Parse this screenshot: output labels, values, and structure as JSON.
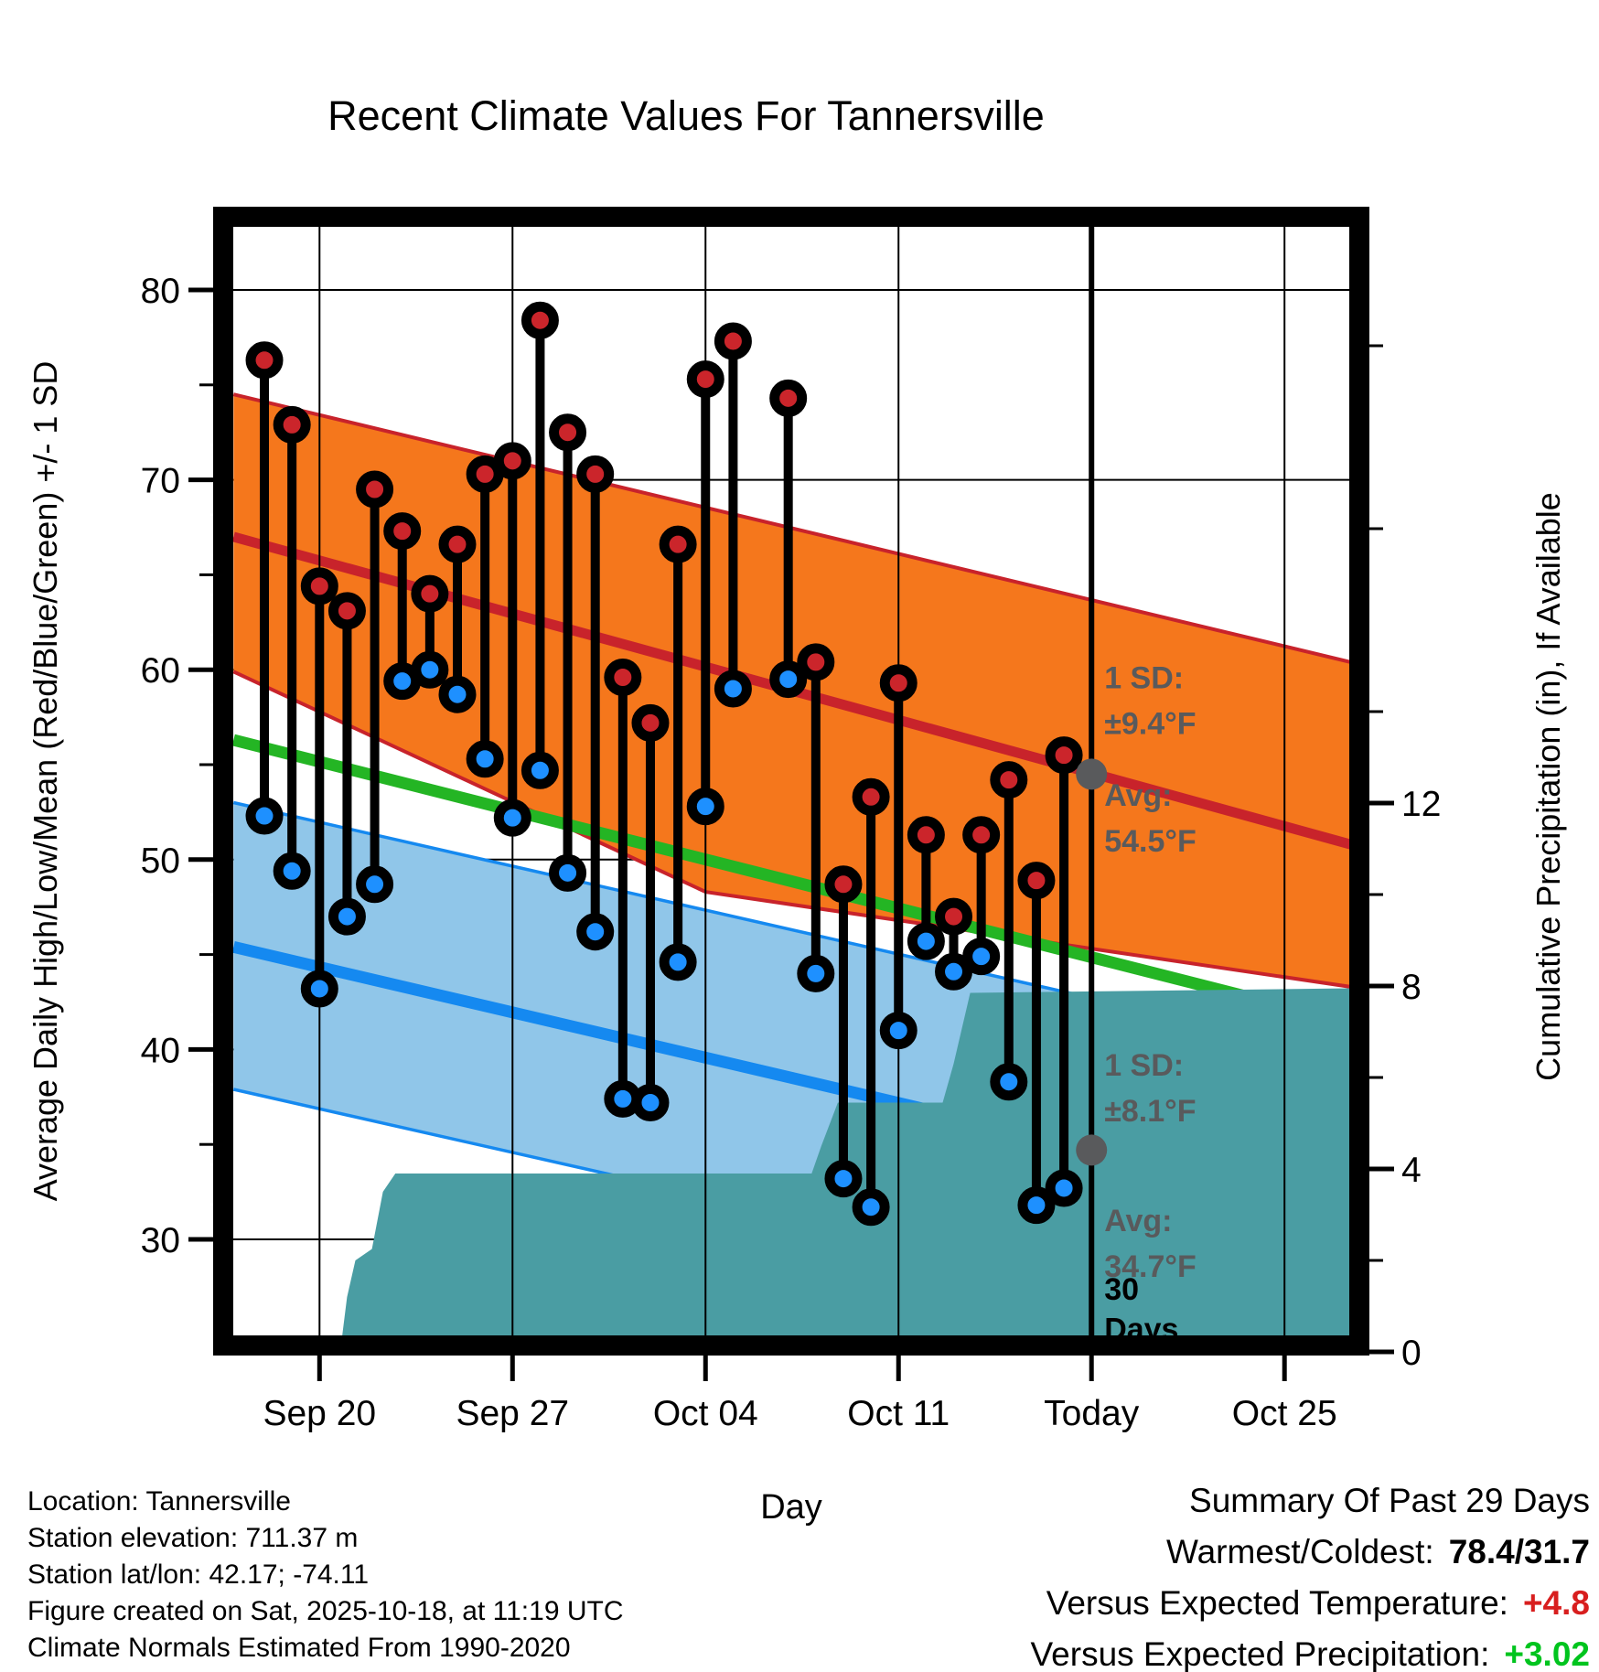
{
  "title": "Recent Climate Values For Tannersville",
  "axes": {
    "y_left_label": "Average Daily High/Low/Mean (Red/Blue/Green) +/- 1 SD",
    "y_right_label": "Cumulative Precipitation (in), If Available",
    "x_label": "Day",
    "y_left_ticks": [
      30,
      40,
      50,
      60,
      70,
      80
    ],
    "y_left_minor_ticks": [
      35,
      45,
      55,
      65,
      75
    ],
    "y_right_ticks": [
      0,
      4,
      8,
      12
    ],
    "y_right_minor_ticks": [
      2,
      6,
      10,
      14,
      18,
      22
    ],
    "x_ticks": [
      {
        "label": "Sep 20",
        "day": 0
      },
      {
        "label": "Sep 27",
        "day": 7
      },
      {
        "label": "Oct 04",
        "day": 14
      },
      {
        "label": "Oct 11",
        "day": 21
      },
      {
        "label": "Today",
        "day": 28
      },
      {
        "label": "Oct 25",
        "day": 35
      }
    ]
  },
  "chart_data": {
    "type": "line",
    "subtype": "daily-high-low-stems-with-normal-bands-and-cumulative-precip",
    "title": "Recent Climate Values For Tannersville",
    "xlabel": "Day",
    "ylabel_left": "Average Daily High/Low/Mean (Red/Blue/Green) +/- 1 SD",
    "ylabel_right": "Cumulative Precipitation (in), If Available",
    "ylim_left_F": [
      25.0,
      83.4
    ],
    "ylim_right_in": [
      0,
      24.6
    ],
    "x_range_days": [
      -3.12,
      37.4
    ],
    "grid": true,
    "days": [
      {
        "date": "Sep 18",
        "day": -2,
        "high": 76.3,
        "low": 52.3
      },
      {
        "date": "Sep 19",
        "day": -1,
        "high": 72.9,
        "low": 49.4
      },
      {
        "date": "Sep 20",
        "day": 0,
        "high": 64.4,
        "low": 43.2
      },
      {
        "date": "Sep 21",
        "day": 1,
        "high": 63.1,
        "low": 47.0
      },
      {
        "date": "Sep 22",
        "day": 2,
        "high": 69.5,
        "low": 48.7
      },
      {
        "date": "Sep 23",
        "day": 3,
        "high": 67.3,
        "low": 59.4
      },
      {
        "date": "Sep 24",
        "day": 4,
        "high": 64.0,
        "low": 60.0
      },
      {
        "date": "Sep 25",
        "day": 5,
        "high": 66.6,
        "low": 58.7
      },
      {
        "date": "Sep 26",
        "day": 6,
        "high": 70.3,
        "low": 55.3
      },
      {
        "date": "Sep 27",
        "day": 7,
        "high": 71.0,
        "low": 52.2
      },
      {
        "date": "Sep 28",
        "day": 8,
        "high": 78.4,
        "low": 54.7
      },
      {
        "date": "Sep 29",
        "day": 9,
        "high": 72.5,
        "low": 49.3
      },
      {
        "date": "Sep 30",
        "day": 10,
        "high": 70.3,
        "low": 46.2
      },
      {
        "date": "Oct 01",
        "day": 11,
        "high": 59.6,
        "low": 37.4
      },
      {
        "date": "Oct 02",
        "day": 12,
        "high": 57.2,
        "low": 37.2
      },
      {
        "date": "Oct 03",
        "day": 13,
        "high": 66.6,
        "low": 44.6
      },
      {
        "date": "Oct 04",
        "day": 14,
        "high": 75.3,
        "low": 52.8
      },
      {
        "date": "Oct 05",
        "day": 15,
        "high": 77.3,
        "low": 59.0
      },
      {
        "date": "Oct 07",
        "day": 17,
        "high": 74.3,
        "low": 59.5
      },
      {
        "date": "Oct 08",
        "day": 18,
        "high": 60.4,
        "low": 44.0
      },
      {
        "date": "Oct 09",
        "day": 19,
        "high": 48.7,
        "low": 33.2
      },
      {
        "date": "Oct 10",
        "day": 20,
        "high": 53.3,
        "low": 31.7
      },
      {
        "date": "Oct 11",
        "day": 21,
        "high": 59.3,
        "low": 41.0
      },
      {
        "date": "Oct 12",
        "day": 22,
        "high": 51.3,
        "low": 45.7
      },
      {
        "date": "Oct 13",
        "day": 23,
        "high": 47.0,
        "low": 44.1
      },
      {
        "date": "Oct 14",
        "day": 24,
        "high": 51.3,
        "low": 44.9
      },
      {
        "date": "Oct 15",
        "day": 25,
        "high": 54.2,
        "low": 38.3
      },
      {
        "date": "Oct 16",
        "day": 26,
        "high": 48.9,
        "low": 31.8
      },
      {
        "date": "Oct 17",
        "day": 27,
        "high": 55.5,
        "low": 32.7
      }
    ],
    "normals": {
      "high_upper": [
        [
          -3.12,
          74.5
        ],
        [
          37.4,
          60.4
        ]
      ],
      "high_mean": [
        [
          -3.12,
          67.0
        ],
        [
          37.4,
          50.8
        ]
      ],
      "high_lower": [
        [
          -3.12,
          59.9
        ],
        [
          14,
          48.3
        ],
        [
          37.4,
          43.3
        ]
      ],
      "mean": [
        [
          -3.12,
          56.3
        ],
        [
          37.4,
          41.4
        ]
      ],
      "low_upper": [
        [
          -3.12,
          53.0
        ],
        [
          37.4,
          39.6
        ]
      ],
      "low_mean": [
        [
          -3.12,
          45.4
        ],
        [
          37.4,
          31.6
        ]
      ],
      "low_lower": [
        [
          -3.12,
          37.9
        ],
        [
          37.4,
          24.6
        ]
      ]
    },
    "precip_steps": [
      [
        -3.12,
        0
      ],
      [
        0.75,
        0
      ],
      [
        1.0,
        1.2
      ],
      [
        1.3,
        2.0
      ],
      [
        1.9,
        2.25
      ],
      [
        2.3,
        3.5
      ],
      [
        2.75,
        3.9
      ],
      [
        17.85,
        3.9
      ],
      [
        18.2,
        4.5
      ],
      [
        18.8,
        5.45
      ],
      [
        22.6,
        5.45
      ],
      [
        23.0,
        6.3
      ],
      [
        23.6,
        7.85
      ],
      [
        37.4,
        7.95
      ]
    ],
    "today": {
      "label": "Today",
      "day": 28,
      "avg_high_F": 54.5,
      "sd_high_F": 9.4,
      "avg_low_F": 34.7,
      "sd_low_F": 8.1,
      "window_label": "30 Days"
    },
    "markers": [
      {
        "day": 28,
        "T": 54.5
      },
      {
        "day": 28,
        "T": 34.7
      }
    ]
  },
  "annotations": [
    {
      "id": "high-sd",
      "style": "gray",
      "anchor_day": 28,
      "lines": [
        [
          "1 SD:",
          59.6
        ],
        [
          "±9.4°F",
          57.2
        ]
      ]
    },
    {
      "id": "high-avg",
      "style": "gray",
      "anchor_day": 28,
      "lines": [
        [
          "Avg:",
          53.4
        ],
        [
          "54.5°F",
          51.0
        ]
      ]
    },
    {
      "id": "low-sd",
      "style": "gray",
      "anchor_day": 28,
      "lines": [
        [
          "1 SD:",
          39.2
        ],
        [
          "±8.1°F",
          36.8
        ]
      ]
    },
    {
      "id": "low-avg",
      "style": "gray",
      "anchor_day": 28,
      "lines": [
        [
          "Avg:",
          31.0
        ],
        [
          "34.7°F",
          28.6
        ]
      ]
    },
    {
      "id": "days-30",
      "style": "black",
      "anchor_day": 28,
      "lines": [
        [
          "30",
          27.4
        ],
        [
          "Days",
          25.3
        ]
      ]
    }
  ],
  "footer": [
    "Location: Tannersville",
    "Station elevation: 711.37 m",
    "Station lat/lon: 42.17; -74.11",
    "Figure created on Sat, 2025-10-18, at 11:19 UTC",
    "Climate Normals Estimated From 1990-2020"
  ],
  "summary": {
    "heading": "Summary Of Past 29 Days",
    "warmest_label": "Warmest/Coldest:",
    "warmest_value": "78.4/31.7",
    "vs_temp_label": "Versus Expected Temperature:",
    "vs_temp_value": "+4.8",
    "vs_precip_label": "Versus Expected Precipitation:",
    "vs_precip_value": "+3.02"
  },
  "colors": {
    "high_band": "#f5771c",
    "high_line": "#c8232b",
    "high_dot": "#cb252b",
    "low_band": "#90c6e9",
    "low_line": "#1589f0",
    "low_dot": "#1e90ff",
    "mean_line": "#24b524",
    "precip_fill": "#4a9da3",
    "stem": "#000000",
    "gray": "#595a5c",
    "neg_red": "#d81e1e",
    "pos_green": "#00c41e"
  }
}
